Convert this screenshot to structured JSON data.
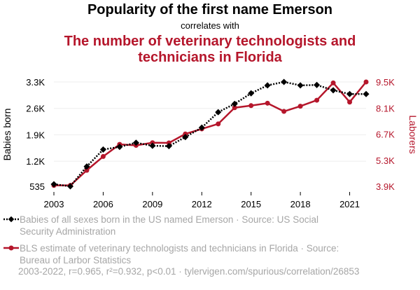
{
  "header": {
    "title": "Popularity of the first name Emerson",
    "subtitle": "correlates with",
    "title2": "The number of veterinary technologists and technicians in Florida"
  },
  "legend": [
    {
      "text": "Babies of all sexes born in the US named Emerson · Source: US Social Security Administration"
    },
    {
      "text": "BLS estimate of veterinary technologists and technicians in Florida · Source: Bureau of Larbor Statistics"
    }
  ],
  "footer": {
    "text": "2003-2022, r=0.965, r²=0.932, p<0.01 · tylervigen.com/spurious/correlation/26853"
  },
  "colors": {
    "series1": "#000000",
    "series2": "#b5162b",
    "grid": "#eeeeee",
    "muted": "#a6a6a6"
  },
  "chart_data": {
    "type": "line",
    "x": [
      2003,
      2004,
      2005,
      2006,
      2007,
      2008,
      2009,
      2010,
      2011,
      2012,
      2013,
      2014,
      2015,
      2016,
      2017,
      2018,
      2019,
      2020,
      2021,
      2022
    ],
    "xticks": [
      "2003",
      "2006",
      "2009",
      "2012",
      "2015",
      "2018",
      "2021"
    ],
    "xlim": [
      2003,
      2022
    ],
    "ylabel": "Babies born",
    "y2label": "Laborers",
    "yticks": [
      "535",
      "1.2K",
      "1.9K",
      "2.6K",
      "3.3K"
    ],
    "yticks_values": [
      535,
      1200,
      1900,
      2600,
      3300
    ],
    "y2ticks": [
      "3.9K",
      "5.3K",
      "6.7K",
      "8.1K",
      "9.5K"
    ],
    "y2ticks_values": [
      3900,
      5300,
      6700,
      8100,
      9500
    ],
    "ylim": [
      535,
      3300
    ],
    "y2lim": [
      3900,
      9500
    ],
    "grid": true,
    "series": [
      {
        "name": "Babies of all sexes born in the US named Emerson",
        "axis": "left",
        "style": "dotted",
        "marker": "diamond",
        "values": [
          590,
          536,
          1060,
          1510,
          1580,
          1690,
          1610,
          1600,
          1840,
          2090,
          2500,
          2720,
          3000,
          3210,
          3300,
          3210,
          3220,
          3080,
          2980,
          2980
        ]
      },
      {
        "name": "BLS estimate of veterinary technologists and technicians in Florida",
        "axis": "right",
        "style": "solid",
        "marker": "circle",
        "values": [
          3950,
          3950,
          4760,
          5500,
          6150,
          6100,
          6240,
          6230,
          6710,
          6980,
          7250,
          8120,
          8230,
          8360,
          7920,
          8200,
          8520,
          9450,
          8420,
          9500
        ]
      }
    ]
  }
}
